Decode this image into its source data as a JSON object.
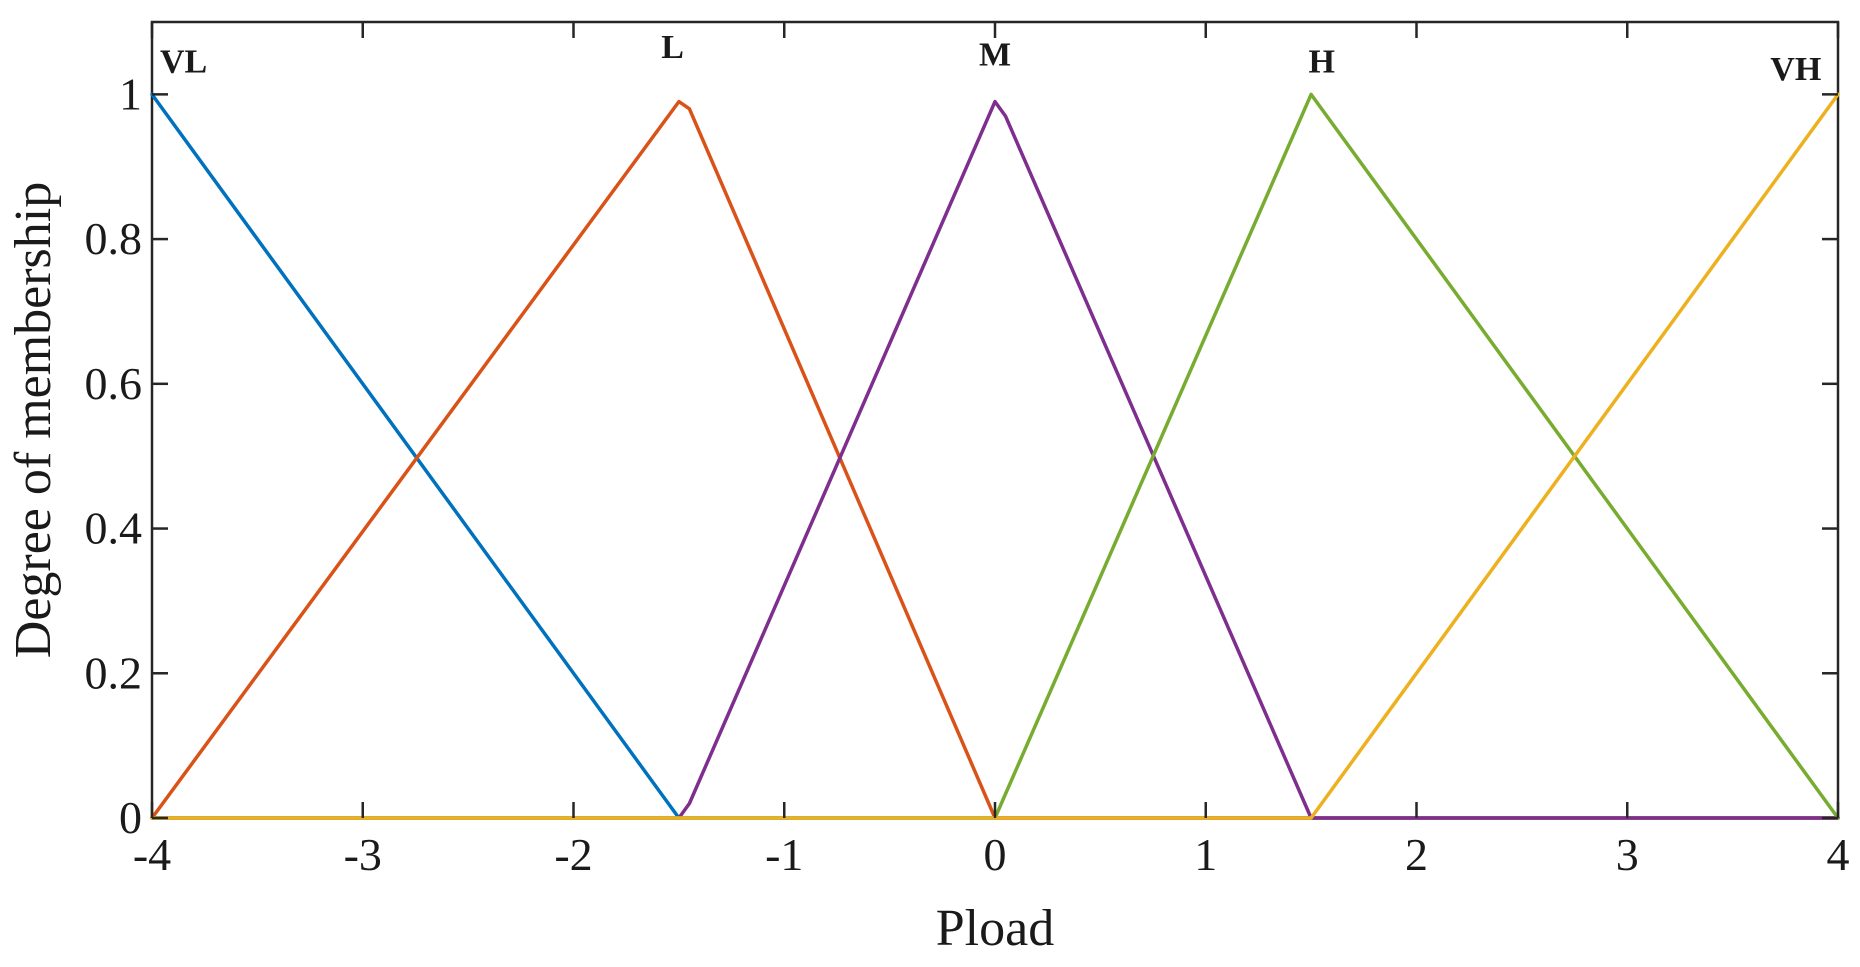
{
  "chart_data": {
    "type": "line",
    "title": "",
    "xlabel": "Pload",
    "ylabel": "Degree of membership",
    "xlim": [
      -4,
      4
    ],
    "ylim": [
      0,
      1.1
    ],
    "xticks": [
      -4,
      -3,
      -2,
      -1,
      0,
      1,
      2,
      3,
      4
    ],
    "yticks": [
      0,
      0.2,
      0.4,
      0.6,
      0.8,
      1
    ],
    "xtick_labels": [
      "-4",
      "-3",
      "-2",
      "-1",
      "0",
      "1",
      "2",
      "3",
      "4"
    ],
    "ytick_labels": [
      "0",
      "0.2",
      "0.4",
      "0.6",
      "0.8",
      "1"
    ],
    "grid": false,
    "series": [
      {
        "name": "VL",
        "color": "#0072BD",
        "label_at": [
          -3.85,
          1.03
        ],
        "x": [
          -4,
          -1.5,
          4
        ],
        "y": [
          1,
          0,
          0
        ]
      },
      {
        "name": "L",
        "color": "#D95319",
        "label_at": [
          -1.53,
          1.05
        ],
        "x": [
          -4,
          -1.5,
          -1.45,
          0,
          4
        ],
        "y": [
          0,
          0.99,
          0.98,
          0,
          0
        ]
      },
      {
        "name": "M",
        "color": "#7E2F8E",
        "label_at": [
          0.0,
          1.04
        ],
        "x": [
          -4,
          -1.5,
          -1.45,
          0,
          0.05,
          1.5,
          4
        ],
        "y": [
          0,
          0,
          0.02,
          0.99,
          0.97,
          0,
          0
        ]
      },
      {
        "name": "H",
        "color": "#77AC30",
        "label_at": [
          1.55,
          1.03
        ],
        "x": [
          -4,
          0,
          1.5,
          4
        ],
        "y": [
          0,
          0,
          1,
          0
        ]
      },
      {
        "name": "VH",
        "color": "#EDB120",
        "label_at": [
          3.8,
          1.02
        ],
        "x": [
          -4,
          1.5,
          4
        ],
        "y": [
          0,
          0,
          1
        ]
      }
    ]
  }
}
